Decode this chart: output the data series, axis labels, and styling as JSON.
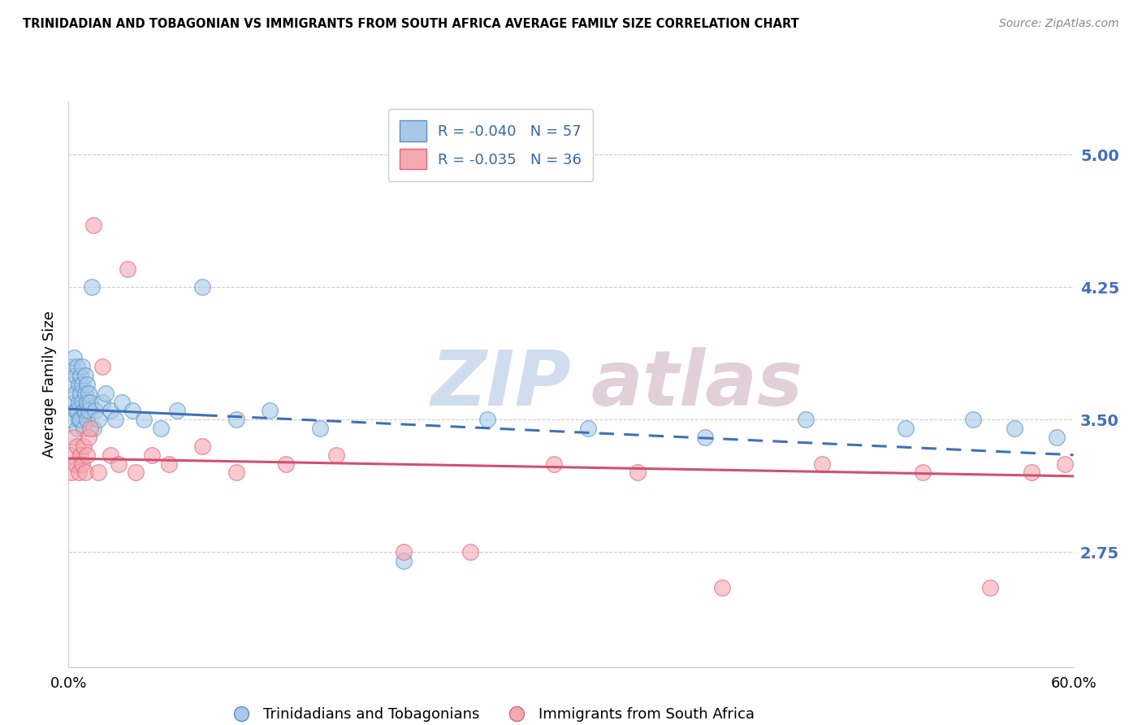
{
  "title": "TRINIDADIAN AND TOBAGONIAN VS IMMIGRANTS FROM SOUTH AFRICA AVERAGE FAMILY SIZE CORRELATION CHART",
  "source": "Source: ZipAtlas.com",
  "ylabel": "Average Family Size",
  "ytick_labels": [
    "2.75",
    "3.50",
    "4.25",
    "5.00"
  ],
  "ytick_vals": [
    2.75,
    3.5,
    4.25,
    5.0
  ],
  "xlim": [
    0.0,
    0.6
  ],
  "ylim": [
    2.1,
    5.3
  ],
  "legend1_label": "R = -0.040   N = 57",
  "legend2_label": "R = -0.035   N = 36",
  "legend_bottom1": "Trinidadians and Tobagonians",
  "legend_bottom2": "Immigrants from South Africa",
  "blue_color": "#a8c8e8",
  "pink_color": "#f4a8b0",
  "blue_edge_color": "#5590c8",
  "pink_edge_color": "#e06080",
  "blue_line_color": "#4070b8",
  "pink_line_color": "#d05070",
  "blue_scatter_x": [
    0.001,
    0.002,
    0.002,
    0.003,
    0.003,
    0.004,
    0.004,
    0.004,
    0.005,
    0.005,
    0.005,
    0.006,
    0.006,
    0.006,
    0.007,
    0.007,
    0.007,
    0.008,
    0.008,
    0.008,
    0.009,
    0.009,
    0.01,
    0.01,
    0.01,
    0.011,
    0.011,
    0.011,
    0.012,
    0.012,
    0.013,
    0.014,
    0.015,
    0.016,
    0.018,
    0.02,
    0.022,
    0.025,
    0.028,
    0.032,
    0.038,
    0.045,
    0.055,
    0.065,
    0.08,
    0.1,
    0.12,
    0.15,
    0.2,
    0.25,
    0.31,
    0.38,
    0.44,
    0.5,
    0.54,
    0.565,
    0.59
  ],
  "blue_scatter_y": [
    3.5,
    3.8,
    3.7,
    3.6,
    3.85,
    3.55,
    3.65,
    3.75,
    3.8,
    3.55,
    3.45,
    3.7,
    3.6,
    3.5,
    3.75,
    3.65,
    3.5,
    3.8,
    3.6,
    3.7,
    3.55,
    3.45,
    3.65,
    3.75,
    3.55,
    3.6,
    3.5,
    3.7,
    3.65,
    3.55,
    3.6,
    4.25,
    3.45,
    3.55,
    3.5,
    3.6,
    3.65,
    3.55,
    3.5,
    3.6,
    3.55,
    3.5,
    3.45,
    3.55,
    4.25,
    3.5,
    3.55,
    3.45,
    2.7,
    3.5,
    3.45,
    3.4,
    3.5,
    3.45,
    3.5,
    3.45,
    3.4
  ],
  "pink_scatter_x": [
    0.001,
    0.002,
    0.003,
    0.004,
    0.005,
    0.006,
    0.007,
    0.008,
    0.009,
    0.01,
    0.011,
    0.012,
    0.013,
    0.015,
    0.018,
    0.02,
    0.025,
    0.03,
    0.035,
    0.04,
    0.05,
    0.06,
    0.08,
    0.1,
    0.13,
    0.16,
    0.2,
    0.24,
    0.29,
    0.34,
    0.39,
    0.45,
    0.51,
    0.55,
    0.575,
    0.595
  ],
  "pink_scatter_y": [
    3.3,
    3.2,
    3.4,
    3.25,
    3.35,
    3.2,
    3.3,
    3.25,
    3.35,
    3.2,
    3.3,
    3.4,
    3.45,
    4.6,
    3.2,
    3.8,
    3.3,
    3.25,
    4.35,
    3.2,
    3.3,
    3.25,
    3.35,
    3.2,
    3.25,
    3.3,
    2.75,
    2.75,
    3.25,
    3.2,
    2.55,
    3.25,
    3.2,
    2.55,
    3.2,
    3.25
  ],
  "blue_trend_x": [
    0.0,
    0.6
  ],
  "blue_trend_y": [
    3.56,
    3.3
  ],
  "pink_trend_x": [
    0.0,
    0.6
  ],
  "pink_trend_y": [
    3.28,
    3.18
  ],
  "watermark_zip_color": "#c8d8ec",
  "watermark_atlas_color": "#dcc8d0"
}
